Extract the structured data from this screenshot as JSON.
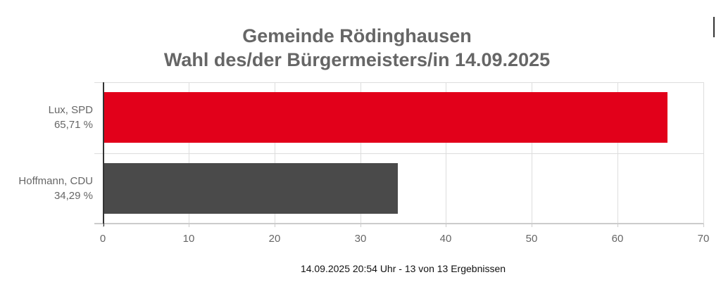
{
  "chart_data": {
    "type": "bar",
    "orientation": "horizontal",
    "title": "Gemeinde Rödinghausen",
    "subtitle": "Wahl des/der Bürgermeisters/in 14.09.2025",
    "categories": [
      "Lux, SPD",
      "Hoffmann, CDU"
    ],
    "category_value_labels": [
      "65,71 %",
      "34,29 %"
    ],
    "values": [
      65.71,
      34.29
    ],
    "colors": [
      "#e2001a",
      "#4a4a4a"
    ],
    "xlabel": "",
    "ylabel": "",
    "xlim": [
      0,
      70
    ],
    "x_ticks": [
      "0",
      "10",
      "20",
      "30",
      "40",
      "50",
      "60",
      "70"
    ],
    "grid": true,
    "legend": "none",
    "footer": "14.09.2025 20:54 Uhr - 13 von 13 Ergebnissen"
  },
  "title_line1": "Gemeinde Rödinghausen",
  "title_line2": "Wahl des/der Bürgermeisters/in 14.09.2025",
  "footer": "14.09.2025 20:54 Uhr - 13 von 13 Ergebnissen"
}
